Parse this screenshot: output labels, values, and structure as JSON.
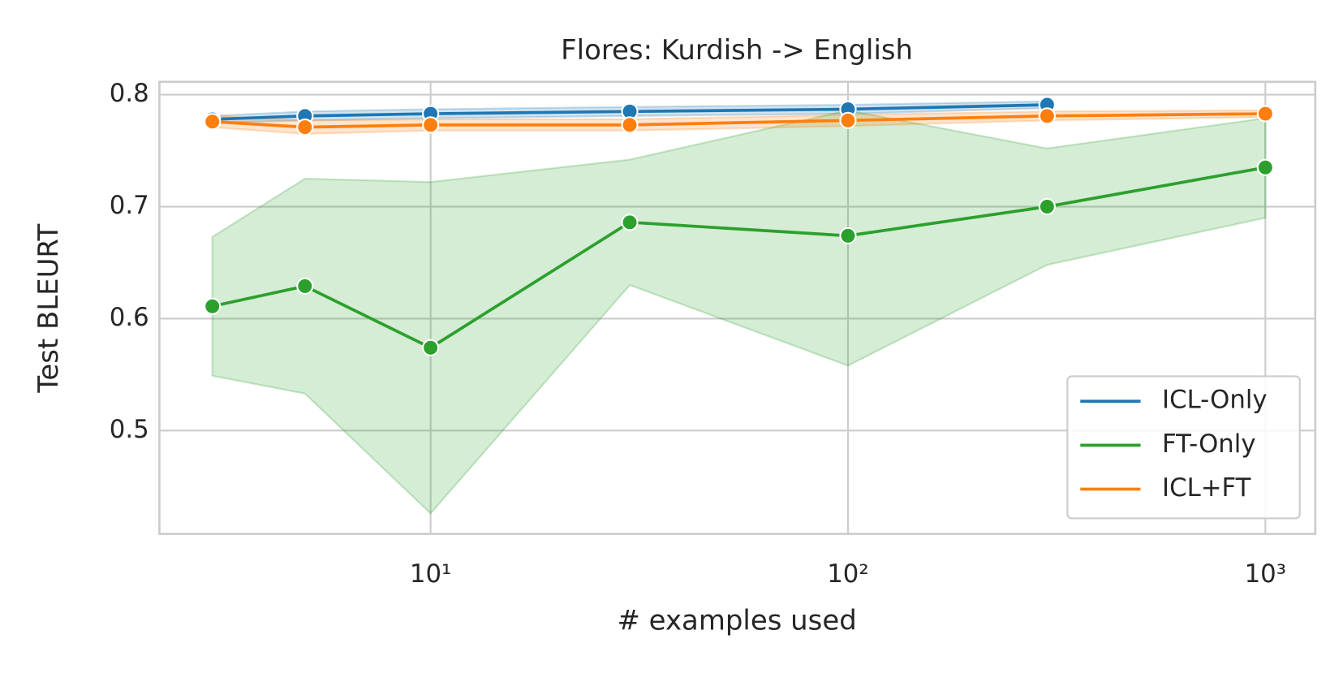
{
  "chart_data": {
    "type": "line",
    "title": "Flores: Kurdish -> English",
    "x_label": "# examples used",
    "y_label": "Test BLEURT",
    "x": [
      3,
      5,
      10,
      30,
      100,
      300,
      1000
    ],
    "x_scale": "log",
    "xlim": [
      2.24,
      1317
    ],
    "xticks": [
      {
        "value": 10,
        "label": "10¹"
      },
      {
        "value": 100,
        "label": "10²"
      },
      {
        "value": 1000,
        "label": "10³"
      }
    ],
    "ylim": [
      0.4077,
      0.8115
    ],
    "yticks": [
      0.5,
      0.6,
      0.7,
      0.8
    ],
    "grid": true,
    "legend": "lower right",
    "series": [
      {
        "name": "ICL-Only",
        "color": "#1f77b4",
        "values": [
          0.778,
          0.781,
          0.783,
          0.785,
          0.787,
          0.791,
          null
        ],
        "lower": [
          0.775,
          0.777,
          0.779,
          0.781,
          0.783,
          0.788,
          null
        ],
        "upper": [
          0.781,
          0.785,
          0.787,
          0.789,
          0.791,
          0.794,
          null
        ]
      },
      {
        "name": "FT-Only",
        "color": "#2ca02c",
        "values": [
          0.611,
          0.629,
          0.574,
          0.686,
          0.674,
          0.7,
          0.735
        ],
        "lower": [
          0.549,
          0.533,
          0.426,
          0.63,
          0.558,
          0.648,
          0.69
        ],
        "upper": [
          0.673,
          0.725,
          0.722,
          0.742,
          0.786,
          0.752,
          0.779
        ]
      },
      {
        "name": "ICL+FT",
        "color": "#ff7f0e",
        "values": [
          0.776,
          0.771,
          0.773,
          0.773,
          0.777,
          0.781,
          0.783
        ],
        "lower": [
          0.771,
          0.765,
          0.768,
          0.768,
          0.772,
          0.777,
          0.78
        ],
        "upper": [
          0.781,
          0.777,
          0.778,
          0.778,
          0.782,
          0.785,
          0.786
        ]
      }
    ]
  }
}
